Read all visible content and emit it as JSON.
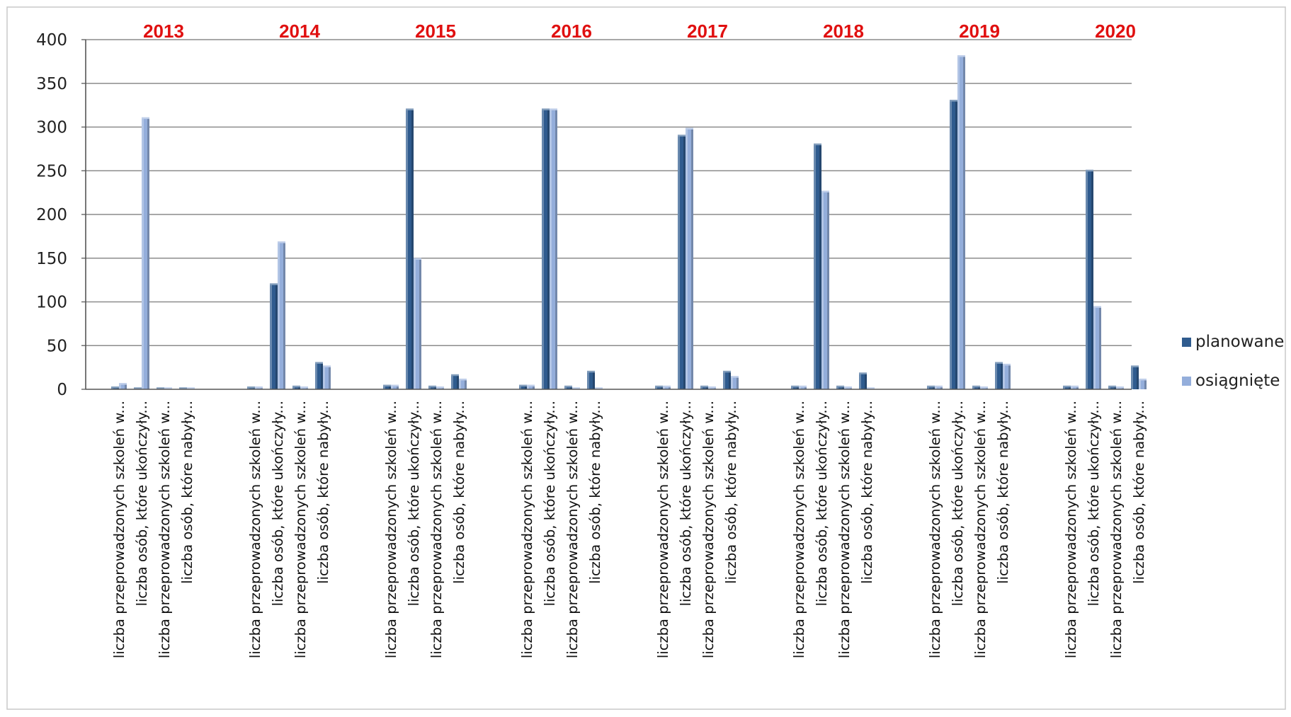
{
  "chart_data": {
    "type": "bar",
    "title": "",
    "xlabel": "",
    "ylabel": "",
    "ylim": [
      0,
      400
    ],
    "yticks": [
      0,
      50,
      100,
      150,
      200,
      250,
      300,
      350,
      400
    ],
    "grid": true,
    "legend": "right",
    "groups": [
      "2013",
      "2014",
      "2015",
      "2016",
      "2017",
      "2018",
      "2019",
      "2020"
    ],
    "categories": [
      "liczba przeprowadzonych szkoleń w...",
      "liczba osób, które ukończyły...",
      "liczba przeprowadzonych szkoleń w...",
      "liczba osób, które nabyły..."
    ],
    "series": [
      {
        "name": "planowane",
        "color": "#2f5b8e",
        "values": [
          [
            2,
            1,
            1,
            1
          ],
          [
            2,
            120,
            3,
            30
          ],
          [
            4,
            320,
            3,
            16
          ],
          [
            4,
            320,
            3,
            20
          ],
          [
            3,
            290,
            3,
            20
          ],
          [
            3,
            280,
            3,
            18
          ],
          [
            3,
            330,
            3,
            30
          ],
          [
            3,
            250,
            3,
            26
          ]
        ]
      },
      {
        "name": "osiągnięte",
        "color": "#94aedb",
        "values": [
          [
            6,
            310,
            1,
            1
          ],
          [
            2,
            168,
            2,
            26
          ],
          [
            4,
            149,
            2,
            11
          ],
          [
            4,
            320,
            1,
            1
          ],
          [
            3,
            298,
            2,
            14
          ],
          [
            3,
            226,
            2,
            1
          ],
          [
            3,
            381,
            2,
            28
          ],
          [
            3,
            94,
            2,
            11
          ]
        ]
      }
    ]
  }
}
